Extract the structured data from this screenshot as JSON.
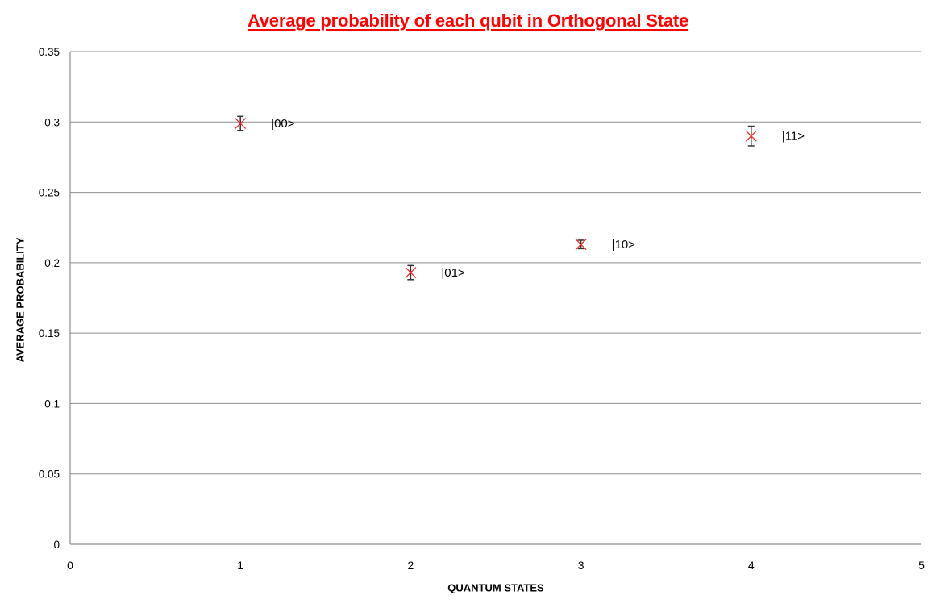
{
  "page": {
    "background": "#ffffff"
  },
  "colors": {
    "title": "#ff0000",
    "marker": "#ee2c2c",
    "error_bar": "#333333",
    "gridline": "#8e8e8e",
    "axis": "#8e8e8e",
    "text": "#000000"
  },
  "chart_data": {
    "type": "scatter",
    "title": "Average probability of each qubit in Orthogonal State",
    "xlabel": "QUANTUM STATES",
    "ylabel": "AVERAGE PROBABILITY",
    "xlim": [
      0,
      5
    ],
    "ylim": [
      0,
      0.35
    ],
    "x_ticks": [
      0,
      1,
      2,
      3,
      4,
      5
    ],
    "x_tick_labels": [
      "0",
      "1",
      "2",
      "3",
      "4",
      "5"
    ],
    "y_ticks": [
      0,
      0.05,
      0.1,
      0.15,
      0.2,
      0.25,
      0.3,
      0.35
    ],
    "y_tick_labels": [
      "0",
      "0.05",
      "0.1",
      "0.15",
      "0.2",
      "0.25",
      "0.3",
      "0.35"
    ],
    "grid": "horizontal-major",
    "legend": "none",
    "marker": "x-cross-with-error-bars",
    "points": [
      {
        "x": 1,
        "y": 0.299,
        "yerr": 0.005,
        "label": "|00>"
      },
      {
        "x": 2,
        "y": 0.193,
        "yerr": 0.005,
        "label": "|01>"
      },
      {
        "x": 3,
        "y": 0.213,
        "yerr": 0.003,
        "label": "|10>"
      },
      {
        "x": 4,
        "y": 0.29,
        "yerr": 0.007,
        "label": "|11>"
      }
    ]
  }
}
